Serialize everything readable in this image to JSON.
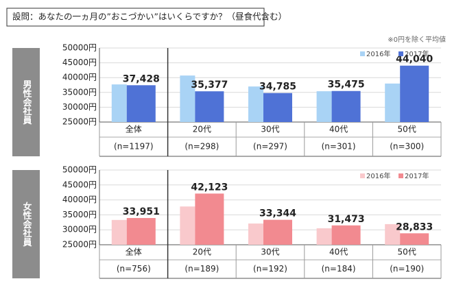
{
  "question": "設問：あなたの一ヵ月の”おこづかい”はいくらですか？（昼食代含む）",
  "note": "※0円を除く平均値",
  "chart_data": [
    {
      "type": "bar",
      "label": "男性会社員",
      "categories": [
        "全体",
        "20代",
        "30代",
        "40代",
        "50代"
      ],
      "sample_sizes": [
        "(n=1197)",
        "(n=298)",
        "(n=297)",
        "(n=301)",
        "(n=300)"
      ],
      "series": [
        {
          "name": "2016年",
          "color": "#a9d3f5",
          "values": [
            37700,
            40700,
            37000,
            35400,
            38000
          ]
        },
        {
          "name": "2017年",
          "color": "#4f72d6",
          "values": [
            37428,
            35377,
            34785,
            35475,
            44040
          ],
          "value_labels": [
            "37,428",
            "35,377",
            "34,785",
            "35,475",
            "44,040"
          ]
        }
      ],
      "ylim": [
        25000,
        50000
      ],
      "yticks": [
        {
          "value": 25000,
          "label": "25000円"
        },
        {
          "value": 30000,
          "label": "30000円"
        },
        {
          "value": 35000,
          "label": "35000円"
        },
        {
          "value": 40000,
          "label": "40000円"
        },
        {
          "value": 45000,
          "label": "45000円"
        },
        {
          "value": 50000,
          "label": "50000円"
        }
      ],
      "grid": true,
      "legend": "top-right"
    },
    {
      "type": "bar",
      "label": "女性会社員",
      "categories": [
        "全体",
        "20代",
        "30代",
        "40代",
        "50代"
      ],
      "sample_sizes": [
        "(n=756)",
        "(n=189)",
        "(n=192)",
        "(n=184)",
        "(n=190)"
      ],
      "series": [
        {
          "name": "2016年",
          "color": "#f9c9cc",
          "values": [
            33300,
            37800,
            32100,
            30500,
            31900
          ]
        },
        {
          "name": "2017年",
          "color": "#f28a90",
          "values": [
            33951,
            42123,
            33344,
            31473,
            28833
          ],
          "value_labels": [
            "33,951",
            "42,123",
            "33,344",
            "31,473",
            "28,833"
          ]
        }
      ],
      "ylim": [
        25000,
        50000
      ],
      "yticks": [
        {
          "value": 25000,
          "label": "25000円"
        },
        {
          "value": 30000,
          "label": "30000円"
        },
        {
          "value": 35000,
          "label": "35000円"
        },
        {
          "value": 40000,
          "label": "40000円"
        },
        {
          "value": 45000,
          "label": "45000円"
        },
        {
          "value": 50000,
          "label": "50000円"
        }
      ],
      "grid": true,
      "legend": "top-right"
    }
  ]
}
